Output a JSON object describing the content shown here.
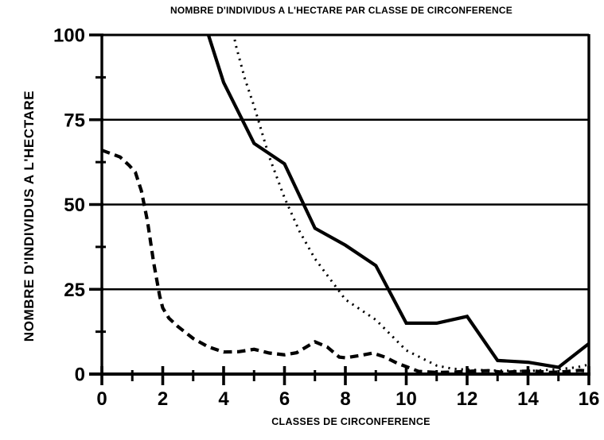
{
  "chart": {
    "title": "NOMBRE D'INDIVIDUS A L'HECTARE PAR CLASSE DE CIRCONFERENCE",
    "x_axis_label": "CLASSES DE CIRCONFERENCE",
    "y_axis_label": "NOMBRE D'INDIVIDUS A L'HECTARE",
    "colors": {
      "ink": "#000000",
      "background": "#ffffff"
    }
  },
  "chart_data": {
    "type": "line",
    "title": "NOMBRE D'INDIVIDUS A L'HECTARE PAR CLASSE DE CIRCONFERENCE",
    "xlabel": "CLASSES DE CIRCONFERENCE",
    "ylabel": "NOMBRE D'INDIVIDUS A L'HECTARE",
    "xlim": [
      0,
      16
    ],
    "ylim": [
      0,
      100
    ],
    "x_major_ticks": [
      0,
      2,
      4,
      6,
      8,
      10,
      12,
      14,
      16
    ],
    "x_minor_ticks": [
      1,
      3,
      5,
      7,
      9,
      11,
      13,
      15
    ],
    "y_major_ticks": [
      0,
      25,
      50,
      75,
      100
    ],
    "y_minor_ticks": [
      12.5,
      37.5,
      62.5,
      87.5
    ],
    "x_tick_labels": [
      "0",
      "2",
      "4",
      "6",
      "8",
      "10",
      "12",
      "14",
      "16"
    ],
    "y_tick_labels": [
      "0",
      "25",
      "50",
      "75",
      "100"
    ],
    "gridlines_y": [
      25,
      50,
      75,
      100
    ],
    "grid": "horizontal-major",
    "legend": "none",
    "series": [
      {
        "name": "solid",
        "style": "solid",
        "color": "#000000",
        "points": [
          [
            3.2,
            110
          ],
          [
            3.5,
            100
          ],
          [
            4,
            86
          ],
          [
            5,
            68
          ],
          [
            6,
            62
          ],
          [
            7,
            43
          ],
          [
            8,
            38
          ],
          [
            9,
            32
          ],
          [
            10,
            15
          ],
          [
            11,
            15
          ],
          [
            12,
            17
          ],
          [
            13,
            4
          ],
          [
            14,
            3.5
          ],
          [
            15,
            2
          ],
          [
            16,
            9
          ]
        ]
      },
      {
        "name": "dotted",
        "style": "dotted",
        "color": "#000000",
        "points": [
          [
            4.15,
            108
          ],
          [
            4.4,
            97
          ],
          [
            4.7,
            87
          ],
          [
            5,
            79
          ],
          [
            5.5,
            64
          ],
          [
            6,
            52
          ],
          [
            6.5,
            42
          ],
          [
            7,
            34
          ],
          [
            8,
            22
          ],
          [
            9,
            16
          ],
          [
            10,
            7
          ],
          [
            11,
            2.5
          ],
          [
            11.5,
            1.6
          ],
          [
            12,
            1.3
          ],
          [
            13,
            1
          ],
          [
            14,
            0.9
          ],
          [
            15,
            1.4
          ],
          [
            15.6,
            2
          ],
          [
            16,
            2.8
          ]
        ]
      },
      {
        "name": "dashed",
        "style": "dashed",
        "color": "#000000",
        "points": [
          [
            0,
            66
          ],
          [
            0.3,
            65
          ],
          [
            0.6,
            64
          ],
          [
            0.9,
            61.5
          ],
          [
            1.1,
            59.5
          ],
          [
            1.3,
            54
          ],
          [
            1.5,
            45
          ],
          [
            1.7,
            33
          ],
          [
            1.9,
            23
          ],
          [
            2,
            19.5
          ],
          [
            2.2,
            16.5
          ],
          [
            2.5,
            14
          ],
          [
            3,
            10.5
          ],
          [
            3.5,
            8
          ],
          [
            4,
            6.5
          ],
          [
            4.5,
            6.6
          ],
          [
            5,
            7.3
          ],
          [
            5.5,
            6.2
          ],
          [
            6,
            5.7
          ],
          [
            6.4,
            6.3
          ],
          [
            7,
            9.5
          ],
          [
            7.4,
            8
          ],
          [
            7.8,
            5
          ],
          [
            8,
            4.8
          ],
          [
            8.5,
            5.5
          ],
          [
            8.9,
            6.2
          ],
          [
            9.3,
            5
          ],
          [
            9.7,
            3.2
          ],
          [
            10,
            2.2
          ],
          [
            10.4,
            0.8
          ],
          [
            11,
            0.5
          ],
          [
            11.6,
            0.6
          ],
          [
            12.2,
            0.9
          ],
          [
            12.7,
            1
          ],
          [
            13.2,
            0.5
          ],
          [
            13.7,
            0.8
          ],
          [
            14.2,
            0.9
          ],
          [
            14.7,
            0.5
          ],
          [
            15.2,
            0.7
          ],
          [
            15.7,
            1.1
          ],
          [
            16,
            0.9
          ]
        ]
      }
    ]
  }
}
